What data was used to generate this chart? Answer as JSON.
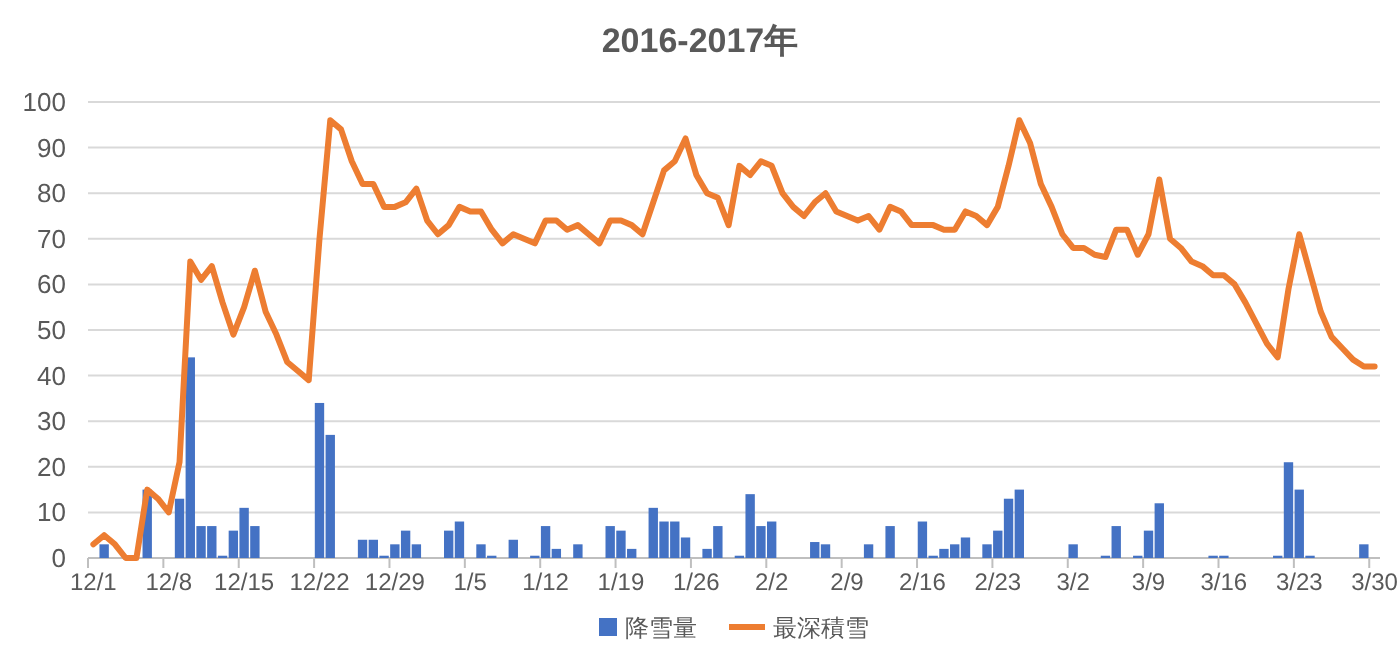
{
  "chart_data": {
    "type": "bar",
    "title": "2016-2017年",
    "categories": [
      "12/1",
      null,
      null,
      null,
      null,
      null,
      null,
      "12/8",
      null,
      null,
      null,
      null,
      null,
      null,
      "12/15",
      null,
      null,
      null,
      null,
      null,
      null,
      "12/22",
      null,
      null,
      null,
      null,
      null,
      null,
      "12/29",
      null,
      null,
      null,
      null,
      null,
      null,
      "1/5",
      null,
      null,
      null,
      null,
      null,
      null,
      "1/12",
      null,
      null,
      null,
      null,
      null,
      null,
      "1/19",
      null,
      null,
      null,
      null,
      null,
      null,
      "1/26",
      null,
      null,
      null,
      null,
      null,
      null,
      "2/2",
      null,
      null,
      null,
      null,
      null,
      null,
      "2/9",
      null,
      null,
      null,
      null,
      null,
      null,
      "2/16",
      null,
      null,
      null,
      null,
      null,
      null,
      "2/23",
      null,
      null,
      null,
      null,
      null,
      null,
      "3/2",
      null,
      null,
      null,
      null,
      null,
      null,
      "3/9",
      null,
      null,
      null,
      null,
      null,
      null,
      "3/16",
      null,
      null,
      null,
      null,
      null,
      null,
      "3/23",
      null,
      null,
      null,
      null,
      null,
      null,
      "3/30"
    ],
    "series": [
      {
        "name": "降雪量",
        "color": "#4472c4",
        "values": [
          0,
          3,
          0,
          0,
          0,
          15,
          0,
          0,
          13,
          44,
          7,
          7,
          0.5,
          6,
          11,
          7,
          0,
          0,
          0,
          0,
          0,
          34,
          27,
          0,
          0,
          4,
          4,
          0.5,
          3,
          6,
          3,
          0,
          0,
          6,
          8,
          0,
          3,
          0.5,
          0,
          4,
          0,
          0.5,
          7,
          2,
          0,
          3,
          0,
          0,
          7,
          6,
          2,
          0,
          11,
          8,
          8,
          4.5,
          0,
          2,
          7,
          0,
          0.5,
          14,
          7,
          8,
          0,
          0,
          0,
          3.5,
          3,
          0,
          0,
          0,
          3,
          0,
          7,
          0,
          0,
          8,
          0.5,
          2,
          3,
          4.5,
          0,
          3,
          6,
          13,
          15,
          0,
          0,
          0,
          0,
          3,
          0,
          0,
          0.5,
          7,
          0,
          0.5,
          6,
          12,
          0,
          0,
          0,
          0,
          0.5,
          0.5,
          0,
          0,
          0,
          0,
          0.5,
          21,
          15,
          0.5,
          0,
          0,
          0,
          0,
          3,
          0
        ]
      },
      {
        "name": "最深積雪",
        "type": "line",
        "color": "#ed7d31",
        "values": [
          3,
          5,
          3,
          0,
          0,
          15,
          13,
          10,
          21,
          65,
          61,
          64,
          56,
          49,
          55,
          63,
          54,
          49,
          43,
          41,
          39,
          70,
          96,
          94,
          87,
          82,
          82,
          77,
          77,
          78,
          81,
          74,
          71,
          73,
          77,
          76,
          76,
          72,
          69,
          71,
          70,
          69,
          74,
          74,
          72,
          73,
          71,
          69,
          74,
          74,
          73,
          71,
          78,
          85,
          87,
          92,
          84,
          80,
          79,
          73,
          86,
          84,
          87,
          86,
          80,
          77,
          75,
          78,
          80,
          76,
          75,
          74,
          75,
          72,
          77,
          76,
          73,
          73,
          73,
          72,
          72,
          76,
          75,
          73,
          77,
          86,
          96,
          91,
          82,
          77,
          71,
          68,
          68,
          66.5,
          66,
          72,
          72,
          66.5,
          71,
          83,
          70,
          68,
          65,
          64,
          62,
          62,
          60,
          56,
          51.5,
          47,
          44,
          59,
          71,
          62.5,
          54,
          48.5,
          46,
          43.5,
          42,
          42
        ]
      }
    ],
    "ylim": [
      0,
      100
    ],
    "yticks": [
      0,
      10,
      20,
      30,
      40,
      50,
      60,
      70,
      80,
      90,
      100
    ],
    "grid": "y",
    "legend": "bottom"
  }
}
